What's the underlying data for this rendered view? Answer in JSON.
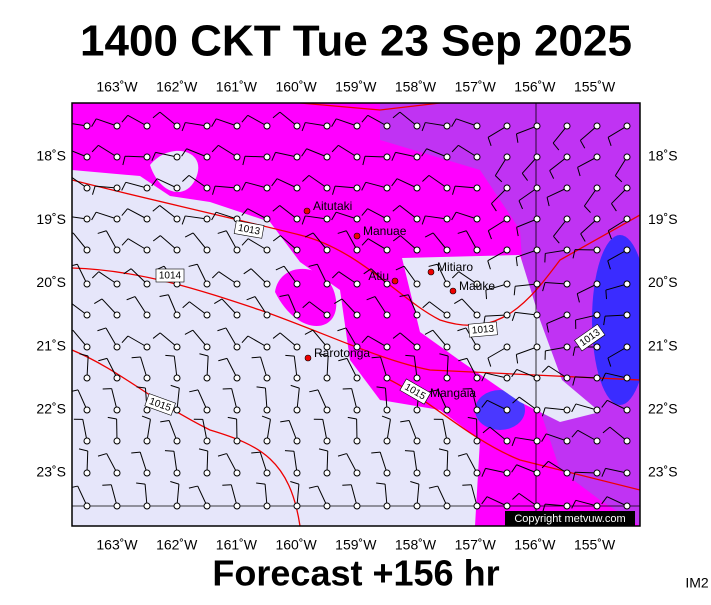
{
  "title": "1400 CKT Tue 23 Sep 2025",
  "footer": "Forecast +156 hr",
  "corner_label": "IM2",
  "copyright": "Copyright metvuw.com",
  "lon_labels": [
    "163˚W",
    "162˚W",
    "161˚W",
    "160˚W",
    "159˚W",
    "158˚W",
    "157˚W",
    "156˚W",
    "155˚W"
  ],
  "lat_labels": [
    "18˚S",
    "19˚S",
    "20˚S",
    "21˚S",
    "22˚S",
    "23˚S"
  ],
  "places": [
    "Aitutaki",
    "Manuae",
    "Mitiaro",
    "Atiu",
    "Mauke",
    "Rarotonga",
    "Mangaia"
  ],
  "isobar_labels": [
    "1013",
    "1014",
    "1013",
    "1013",
    "1015",
    "1015"
  ]
}
